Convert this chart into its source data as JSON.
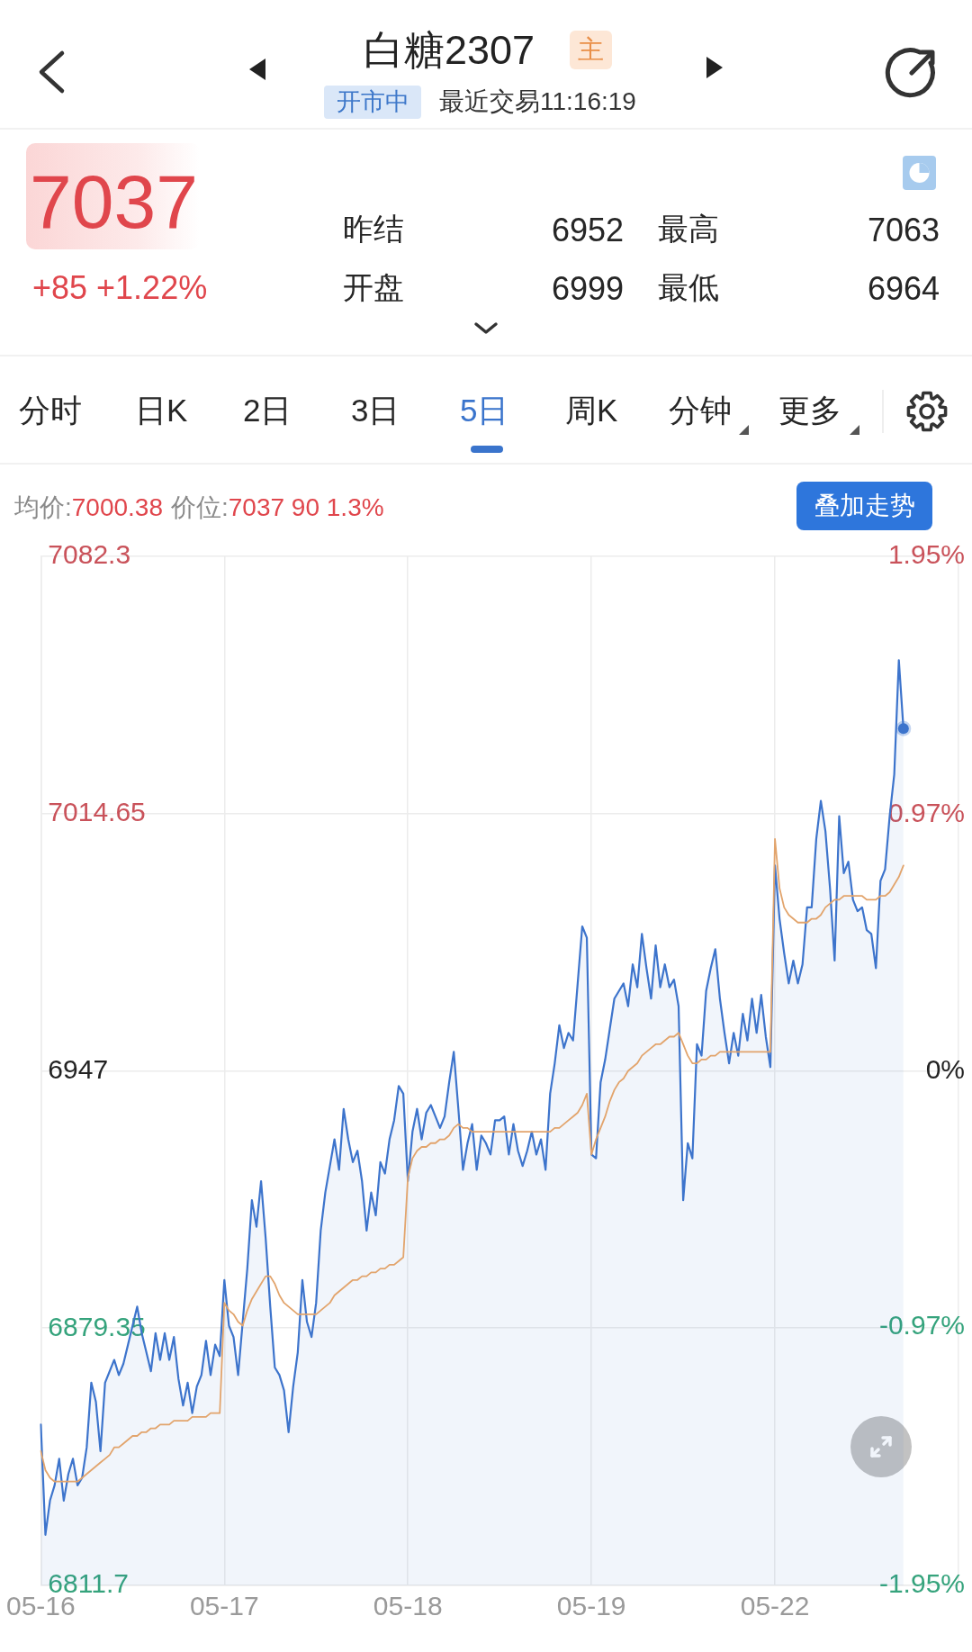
{
  "chart_data": {
    "type": "line",
    "title": "白糖2307",
    "subtitle": "最近交易11:16:19",
    "annotations": [
      "主",
      "开市中",
      "7037",
      "+85 +1.22%",
      "昨结",
      "6952",
      "最高",
      "7063",
      "开盘",
      "6999",
      "最低",
      "6964",
      "分时",
      "日K",
      "2日",
      "3日",
      "5日",
      "周K",
      "分钟",
      "更多",
      "均价:",
      "7000.38",
      "价位:",
      "7037 90 1.3%",
      "叠加走势"
    ],
    "categories": [
      "05-16",
      null,
      null,
      null,
      null,
      null,
      null,
      null,
      null,
      null,
      null,
      null,
      null,
      null,
      null,
      null,
      null,
      null,
      null,
      null,
      null,
      null,
      null,
      null,
      null,
      null,
      null,
      null,
      null,
      null,
      null,
      null,
      null,
      null,
      null,
      null,
      null,
      null,
      null,
      null,
      "05-17",
      null,
      null,
      null,
      null,
      null,
      null,
      null,
      null,
      null,
      null,
      null,
      null,
      null,
      null,
      null,
      null,
      null,
      null,
      null,
      null,
      null,
      null,
      null,
      null,
      null,
      null,
      null,
      null,
      null,
      null,
      null,
      null,
      null,
      null,
      null,
      null,
      null,
      null,
      null,
      "05-18",
      null,
      null,
      null,
      null,
      null,
      null,
      null,
      null,
      null,
      null,
      null,
      null,
      null,
      null,
      null,
      null,
      null,
      null,
      null,
      null,
      null,
      null,
      null,
      null,
      null,
      null,
      null,
      null,
      null,
      null,
      null,
      null,
      null,
      null,
      null,
      null,
      null,
      null,
      null,
      "05-19",
      null,
      null,
      null,
      null,
      null,
      null,
      null,
      null,
      null,
      null,
      null,
      null,
      null,
      null,
      null,
      null,
      null,
      null,
      null,
      null,
      null,
      null,
      null,
      null,
      null,
      null,
      null,
      null,
      null,
      null,
      null,
      null,
      null,
      null,
      null,
      null,
      null,
      null,
      null,
      "05-22",
      null,
      null,
      null,
      null,
      null,
      null,
      null,
      null,
      null,
      null,
      null,
      null,
      null,
      null,
      null,
      null,
      null,
      null,
      null,
      null,
      null,
      null,
      null,
      null,
      null,
      null,
      null,
      null,
      null,
      null,
      null,
      null,
      null,
      null,
      null,
      null,
      null,
      null,
      null,
      null
    ],
    "ylim": [
      6811.7,
      7082.3
    ],
    "yticks": [
      6811.7,
      6879.35,
      6947,
      7014.65,
      7082.3
    ],
    "y2lim": [
      -1.95,
      1.95
    ],
    "y2ticks": [
      {
        "value": 1.95,
        "label": "1.95%"
      },
      {
        "value": 0.97,
        "label": "0.97%"
      },
      {
        "value": 0,
        "label": "0%"
      },
      {
        "value": -0.97,
        "label": "-0.97%"
      },
      {
        "value": -1.95,
        "label": "-1.95%"
      }
    ],
    "grid": true,
    "series": [
      {
        "type": "area",
        "color": "#3d74cc",
        "marker": "none",
        "values": [
          6854,
          6825,
          6834,
          6838,
          6845,
          6834,
          6841,
          6845,
          6838,
          6840,
          6848,
          6865,
          6860,
          6847,
          6865,
          6868,
          6871,
          6867,
          6870,
          6875,
          6880,
          6885,
          6878,
          6873,
          6868,
          6878,
          6871,
          6878,
          6871,
          6877,
          6866,
          6859,
          6865,
          6857,
          6864,
          6867,
          6876,
          6867,
          6875,
          6872,
          6892,
          6880,
          6877,
          6867,
          6881,
          6895,
          6913,
          6906,
          6918,
          6903,
          6885,
          6869,
          6867,
          6863,
          6852,
          6864,
          6873,
          6892,
          6881,
          6877,
          6886,
          6905,
          6915,
          6922,
          6929,
          6921,
          6937,
          6929,
          6923,
          6926,
          6918,
          6905,
          6915,
          6909,
          6923,
          6920,
          6929,
          6934,
          6943,
          6941,
          6918,
          6931,
          6937,
          6929,
          6936,
          6938,
          6935,
          6932,
          6935,
          6944,
          6952,
          6937,
          6921,
          6928,
          6933,
          6921,
          6930,
          6928,
          6925,
          6934,
          6934,
          6935,
          6925,
          6933,
          6926,
          6922,
          6926,
          6931,
          6925,
          6929,
          6921,
          6941,
          6949,
          6959,
          6953,
          6957,
          6955,
          6970,
          6985,
          6982,
          6925,
          6924,
          6944,
          6950,
          6958,
          6966,
          6968,
          6970,
          6964,
          6975,
          6969,
          6983,
          6974,
          6966,
          6980,
          6969,
          6975,
          6969,
          6971,
          6964,
          6913,
          6928,
          6924,
          6954,
          6951,
          6968,
          6974,
          6979,
          6966,
          6957,
          6949,
          6957,
          6951,
          6962,
          6955,
          6966,
          6957,
          6967,
          6956,
          6948,
          7001,
          6987,
          6978,
          6970,
          6976,
          6970,
          6975,
          6990,
          6990,
          7008,
          7018,
          7010,
          6995,
          6976,
          7014,
          6999,
          7002,
          6992,
          6989,
          6990,
          6984,
          6983,
          6974,
          6997,
          7000,
          7014,
          7025,
          7055,
          7037,
          null,
          null,
          null,
          null,
          null,
          null,
          null,
          null,
          null,
          null,
          null,
          null
        ]
      },
      {
        "type": "line",
        "color": "#e2a46c",
        "marker": "none",
        "values": [
          6847,
          6842,
          6840,
          6839,
          6839,
          6839,
          6839,
          6839,
          6839,
          6840,
          6841,
          6842,
          6843,
          6844,
          6845,
          6846,
          6848,
          6848,
          6849,
          6850,
          6851,
          6851,
          6852,
          6852,
          6853,
          6853,
          6854,
          6854,
          6854,
          6855,
          6855,
          6855,
          6855,
          6856,
          6856,
          6856,
          6856,
          6857,
          6857,
          6857,
          6886,
          6884,
          6883,
          6881,
          6880,
          6884,
          6887,
          6889,
          6891,
          6893,
          6893,
          6891,
          6888,
          6886,
          6885,
          6884,
          6883,
          6883,
          6883,
          6883,
          6883,
          6884,
          6885,
          6886,
          6888,
          6889,
          6890,
          6891,
          6892,
          6892,
          6893,
          6893,
          6894,
          6894,
          6895,
          6895,
          6896,
          6896,
          6897,
          6898,
          6919,
          6924,
          6926,
          6927,
          6927,
          6928,
          6928,
          6929,
          6929,
          6930,
          6932,
          6933,
          6932,
          6932,
          6931,
          6931,
          6931,
          6931,
          6931,
          6931,
          6931,
          6931,
          6931,
          6931,
          6931,
          6931,
          6931,
          6931,
          6931,
          6931,
          6931,
          6931,
          6932,
          6932,
          6933,
          6934,
          6935,
          6936,
          6938,
          6941,
          6925,
          6929,
          6932,
          6935,
          6939,
          6942,
          6944,
          6945,
          6947,
          6948,
          6949,
          6951,
          6952,
          6953,
          6954,
          6954,
          6955,
          6956,
          6956,
          6957,
          6954,
          6951,
          6949,
          6949,
          6950,
          6950,
          6951,
          6951,
          6952,
          6952,
          6952,
          6952,
          6952,
          6952,
          6952,
          6952,
          6952,
          6952,
          6952,
          6952,
          7008,
          6995,
          6990,
          6988,
          6987,
          6986,
          6986,
          6986,
          6987,
          6987,
          6988,
          6990,
          6991,
          6992,
          6992,
          6993,
          6993,
          6993,
          6993,
          6993,
          6992,
          6992,
          6992,
          6993,
          6993,
          6994,
          6996,
          6998,
          7001,
          null,
          null,
          null,
          null,
          null,
          null,
          null,
          null,
          null,
          null,
          null,
          null
        ]
      },
      {
        "type": "scatter",
        "color": "#3d74cc",
        "marker": "circle",
        "values": [
          null,
          null,
          null,
          null,
          null,
          null,
          null,
          null,
          null,
          null,
          null,
          null,
          null,
          null,
          null,
          null,
          null,
          null,
          null,
          null,
          null,
          null,
          null,
          null,
          null,
          null,
          null,
          null,
          null,
          null,
          null,
          null,
          null,
          null,
          null,
          null,
          null,
          null,
          null,
          null,
          null,
          null,
          null,
          null,
          null,
          null,
          null,
          null,
          null,
          null,
          null,
          null,
          null,
          null,
          null,
          null,
          null,
          null,
          null,
          null,
          null,
          null,
          null,
          null,
          null,
          null,
          null,
          null,
          null,
          null,
          null,
          null,
          null,
          null,
          null,
          null,
          null,
          null,
          null,
          null,
          null,
          null,
          null,
          null,
          null,
          null,
          null,
          null,
          null,
          null,
          null,
          null,
          null,
          null,
          null,
          null,
          null,
          null,
          null,
          null,
          null,
          null,
          null,
          null,
          null,
          null,
          null,
          null,
          null,
          null,
          null,
          null,
          null,
          null,
          null,
          null,
          null,
          null,
          null,
          null,
          null,
          null,
          null,
          null,
          null,
          null,
          null,
          null,
          null,
          null,
          null,
          null,
          null,
          null,
          null,
          null,
          null,
          null,
          null,
          null,
          null,
          null,
          null,
          null,
          null,
          null,
          null,
          null,
          null,
          null,
          null,
          null,
          null,
          null,
          null,
          null,
          null,
          null,
          null,
          null,
          null,
          null,
          null,
          null,
          null,
          null,
          null,
          null,
          null,
          null,
          null,
          null,
          null,
          null,
          null,
          null,
          null,
          null,
          null,
          null,
          null,
          null,
          null,
          null,
          null,
          null,
          null,
          null,
          7037,
          null,
          null,
          null,
          null,
          null,
          null,
          null,
          null,
          null,
          null,
          null,
          null
        ]
      }
    ]
  }
}
